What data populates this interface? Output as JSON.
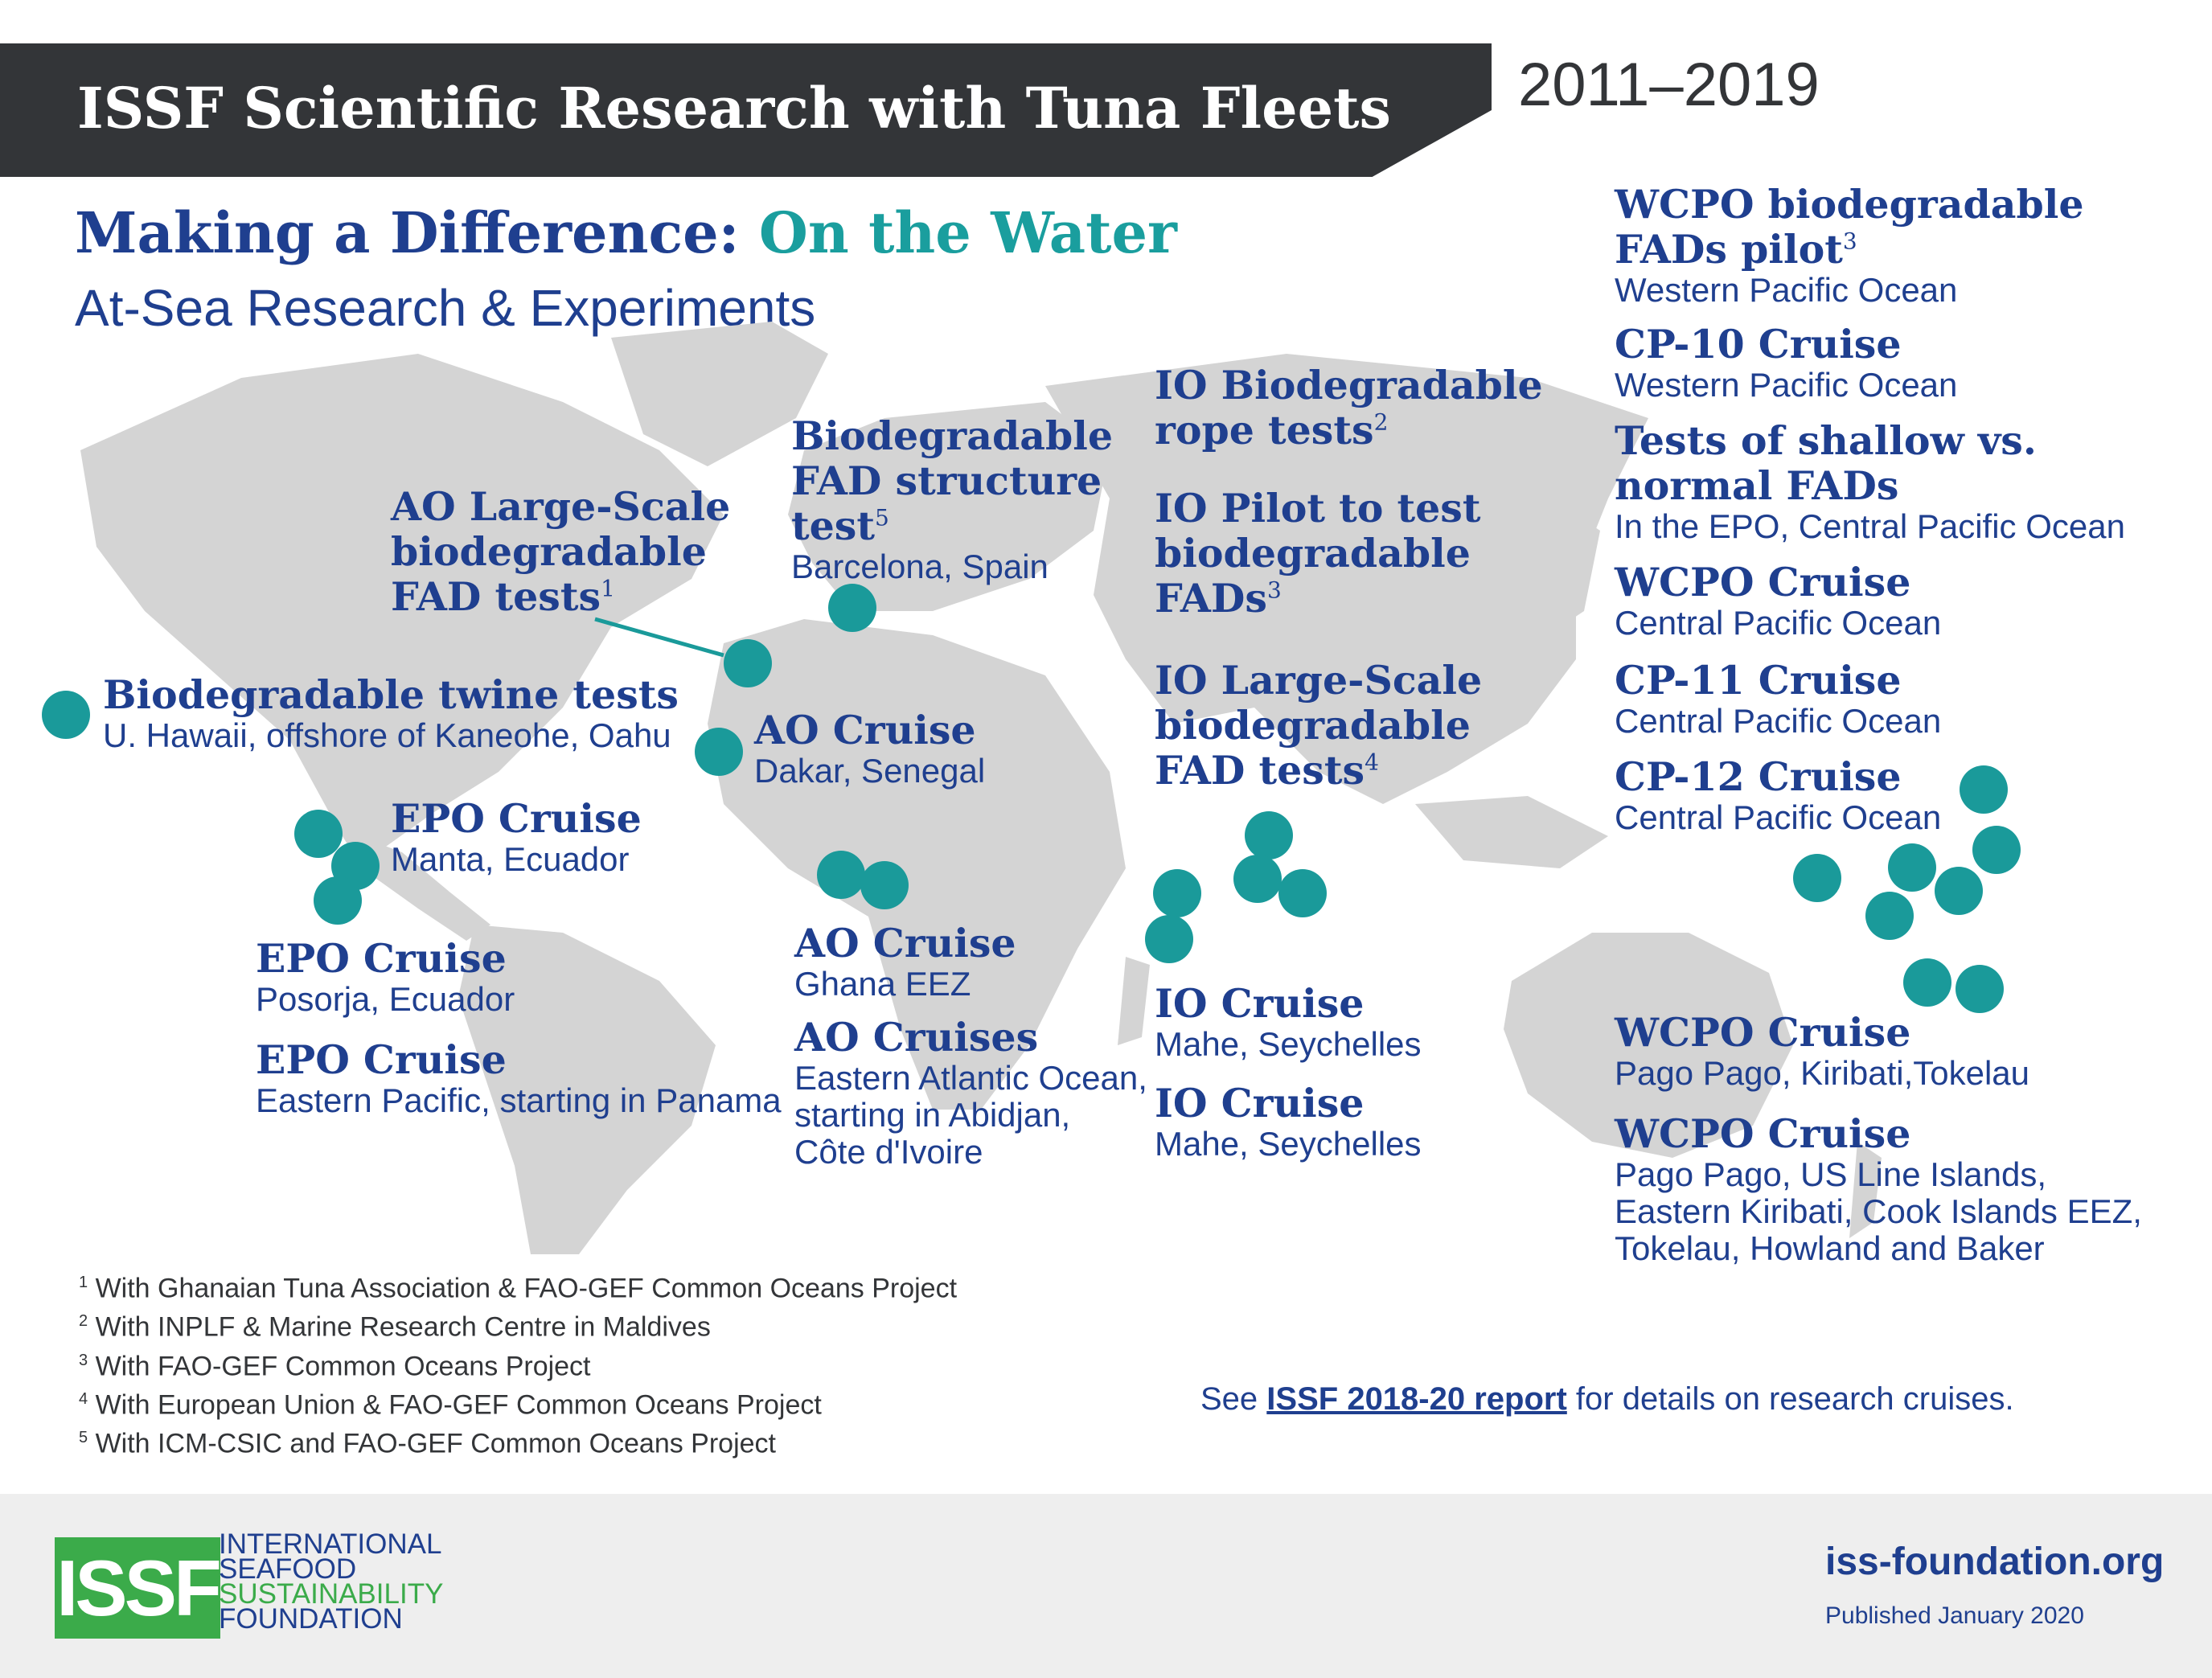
{
  "header": {
    "title": "ISSF Scientific Research with Tuna Fleets",
    "years": "2011–2019"
  },
  "heading": {
    "part1": "Making a Difference: ",
    "part2": "On the Water",
    "subtitle": "At-Sea Research & Experiments"
  },
  "colors": {
    "banner": "#333538",
    "navy": "#1f3f8f",
    "teal": "#1a9a9a",
    "map": "#d4d4d4",
    "logo_green": "#3bab4a",
    "footer_bg": "#eeeeee"
  },
  "entries": {
    "twine": {
      "title": "Biodegradable twine tests",
      "loc": "U. Hawaii, offshore of Kaneohe, Oahu"
    },
    "ao_large": {
      "title": "AO Large-Scale\nbiodegradable\nFAD tests",
      "sup": "1"
    },
    "fad_structure": {
      "title": "Biodegradable\nFAD structure\ntest",
      "sup": "5",
      "loc": "Barcelona, Spain"
    },
    "epo_manta": {
      "title": "EPO Cruise",
      "loc": "Manta, Ecuador"
    },
    "epo_posorja": {
      "title": "EPO Cruise",
      "loc": "Posorja, Ecuador"
    },
    "epo_panama": {
      "title": "EPO Cruise",
      "loc": "Eastern Pacific, starting in Panama"
    },
    "ao_dakar": {
      "title": "AO Cruise",
      "loc": "Dakar, Senegal"
    },
    "ao_ghana": {
      "title": "AO Cruise",
      "loc": "Ghana EEZ"
    },
    "ao_cruises": {
      "title": "AO Cruises",
      "loc": "Eastern Atlantic Ocean,\nstarting in Abidjan,\nCôte d'Ivoire"
    },
    "io_rope": {
      "title": "IO Biodegradable\nrope tests",
      "sup": "2"
    },
    "io_pilot": {
      "title": "IO Pilot to test\nbiodegradable\nFADs",
      "sup": "3"
    },
    "io_large": {
      "title": "IO Large-Scale\nbiodegradable\nFAD tests",
      "sup": "4"
    },
    "io_mahe1": {
      "title": "IO Cruise",
      "loc": "Mahe, Seychelles"
    },
    "io_mahe2": {
      "title": "IO Cruise",
      "loc": "Mahe, Seychelles"
    },
    "wcpo_pilot": {
      "title": "WCPO biodegradable\nFADs pilot",
      "sup": "3",
      "loc": "Western Pacific Ocean"
    },
    "cp10": {
      "title": "CP-10 Cruise",
      "loc": "Western Pacific Ocean"
    },
    "shallow": {
      "title": "Tests of shallow vs.\nnormal FADs",
      "loc": "In the EPO, Central Pacific Ocean"
    },
    "wcpo_central": {
      "title": "WCPO Cruise",
      "loc": "Central Pacific Ocean"
    },
    "cp11": {
      "title": "CP-11 Cruise",
      "loc": "Central Pacific Ocean"
    },
    "cp12": {
      "title": "CP-12 Cruise",
      "loc": "Central Pacific Ocean"
    },
    "wcpo_pago1": {
      "title": "WCPO Cruise",
      "loc": "Pago Pago, Kiribati,Tokelau"
    },
    "wcpo_pago2": {
      "title": "WCPO Cruise",
      "loc": "Pago Pago, US Line Islands,\nEastern Kiribati, Cook Islands EEZ,\nTokelau, Howland and Baker"
    }
  },
  "footnotes": [
    {
      "n": "1",
      "text": " With Ghanaian Tuna Association & FAO-GEF Common Oceans Project"
    },
    {
      "n": "2",
      "text": " With INPLF & Marine Research Centre in Maldives"
    },
    {
      "n": "3",
      "text": " With FAO-GEF Common Oceans Project"
    },
    {
      "n": "4",
      "text": " With European Union & FAO-GEF Common Oceans Project"
    },
    {
      "n": "5",
      "text": " With ICM-CSIC and FAO-GEF Common Oceans Project"
    }
  ],
  "report_note": {
    "prefix": "See ",
    "link": "ISSF 2018-20 report",
    "suffix": " for details on research cruises."
  },
  "footer": {
    "logo": "ISSF",
    "logo_lines": [
      "INTERNATIONAL",
      "SEAFOOD",
      "SUSTAINABILITY",
      "FOUNDATION"
    ],
    "website": "iss-foundation.org",
    "published": "Published January 2020"
  }
}
